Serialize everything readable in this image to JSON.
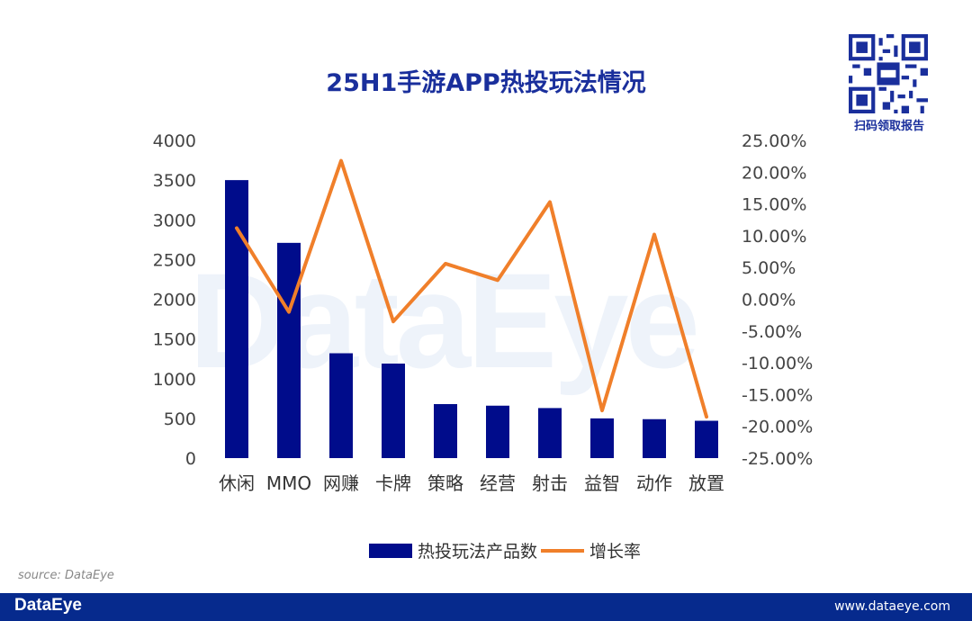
{
  "title": "25H1手游APP热投玩法情况",
  "qr_caption": "扫码领取报告",
  "watermark": "DataEye",
  "source": "source: DataEye",
  "footer": {
    "brand": "DataEye",
    "url": "www.dataeye.com"
  },
  "colors": {
    "bar": "#000c8b",
    "line": "#f07f2a",
    "title": "#1a2f9c",
    "footer": "#062a8d"
  },
  "chart_data": {
    "type": "bar",
    "title": "25H1手游APP热投玩法情况",
    "categories": [
      "休闲",
      "MMO",
      "网赚",
      "卡牌",
      "策略",
      "经营",
      "射击",
      "益智",
      "动作",
      "放置"
    ],
    "series": [
      {
        "name": "热投玩法产品数",
        "type": "bar",
        "axis": "left",
        "values": [
          3500,
          2710,
          1320,
          1190,
          680,
          660,
          630,
          500,
          490,
          470
        ]
      },
      {
        "name": "增长率",
        "type": "line",
        "axis": "right",
        "values": [
          11.2,
          -2.0,
          21.8,
          -3.5,
          5.6,
          3.0,
          15.3,
          -17.5,
          10.2,
          -18.5
        ]
      }
    ],
    "left_axis": {
      "range": [
        0,
        4000
      ],
      "ticks": [
        "0",
        "500",
        "1000",
        "1500",
        "2000",
        "2500",
        "3000",
        "3500",
        "4000"
      ]
    },
    "right_axis": {
      "range": [
        -25,
        25
      ],
      "unit": "%",
      "ticks": [
        "-25.00%",
        "-20.00%",
        "-15.00%",
        "-10.00%",
        "-5.00%",
        "0.00%",
        "5.00%",
        "10.00%",
        "15.00%",
        "20.00%",
        "25.00%"
      ]
    },
    "legend_position": "bottom"
  }
}
